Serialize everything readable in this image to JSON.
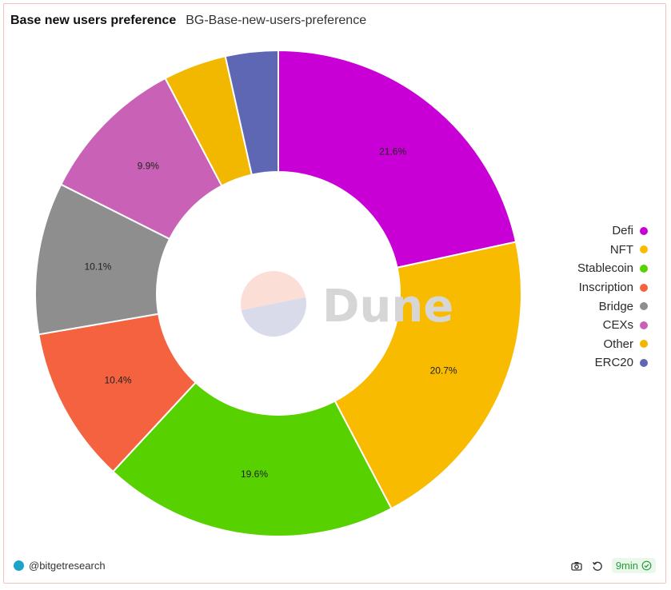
{
  "header": {
    "title": "Base new users preference",
    "subtitle": "BG-Base-new-users-preference"
  },
  "chart_data": {
    "type": "pie",
    "donut": true,
    "slices": [
      {
        "label": "Defi",
        "value": 21.6,
        "color": "#c800d5",
        "show_label": true,
        "label_text": "21.6%"
      },
      {
        "label": "NFT",
        "value": 20.7,
        "color": "#f9bb00",
        "show_label": true,
        "label_text": "20.7%"
      },
      {
        "label": "Stablecoin",
        "value": 19.6,
        "color": "#57d200",
        "show_label": true,
        "label_text": "19.6%"
      },
      {
        "label": "Inscription",
        "value": 10.4,
        "color": "#f4623f",
        "show_label": true,
        "label_text": "10.4%"
      },
      {
        "label": "Bridge",
        "value": 10.1,
        "color": "#8e8e8e",
        "show_label": true,
        "label_text": "10.1%"
      },
      {
        "label": "CEXs",
        "value": 9.9,
        "color": "#c962b6",
        "show_label": true,
        "label_text": "9.9%"
      },
      {
        "label": "Other",
        "value": 4.2,
        "color": "#f2b800",
        "show_label": false,
        "label_text": ""
      },
      {
        "label": "ERC20",
        "value": 3.5,
        "color": "#5d67b3",
        "show_label": false,
        "label_text": ""
      }
    ],
    "legend_position": "right"
  },
  "watermark": {
    "text": "Dune"
  },
  "footer": {
    "author": "@bitgetresearch",
    "freshness": "9min",
    "icons": [
      "camera-icon",
      "refresh-icon",
      "check-circle-icon"
    ],
    "badge_color": "#2a9d3a"
  }
}
